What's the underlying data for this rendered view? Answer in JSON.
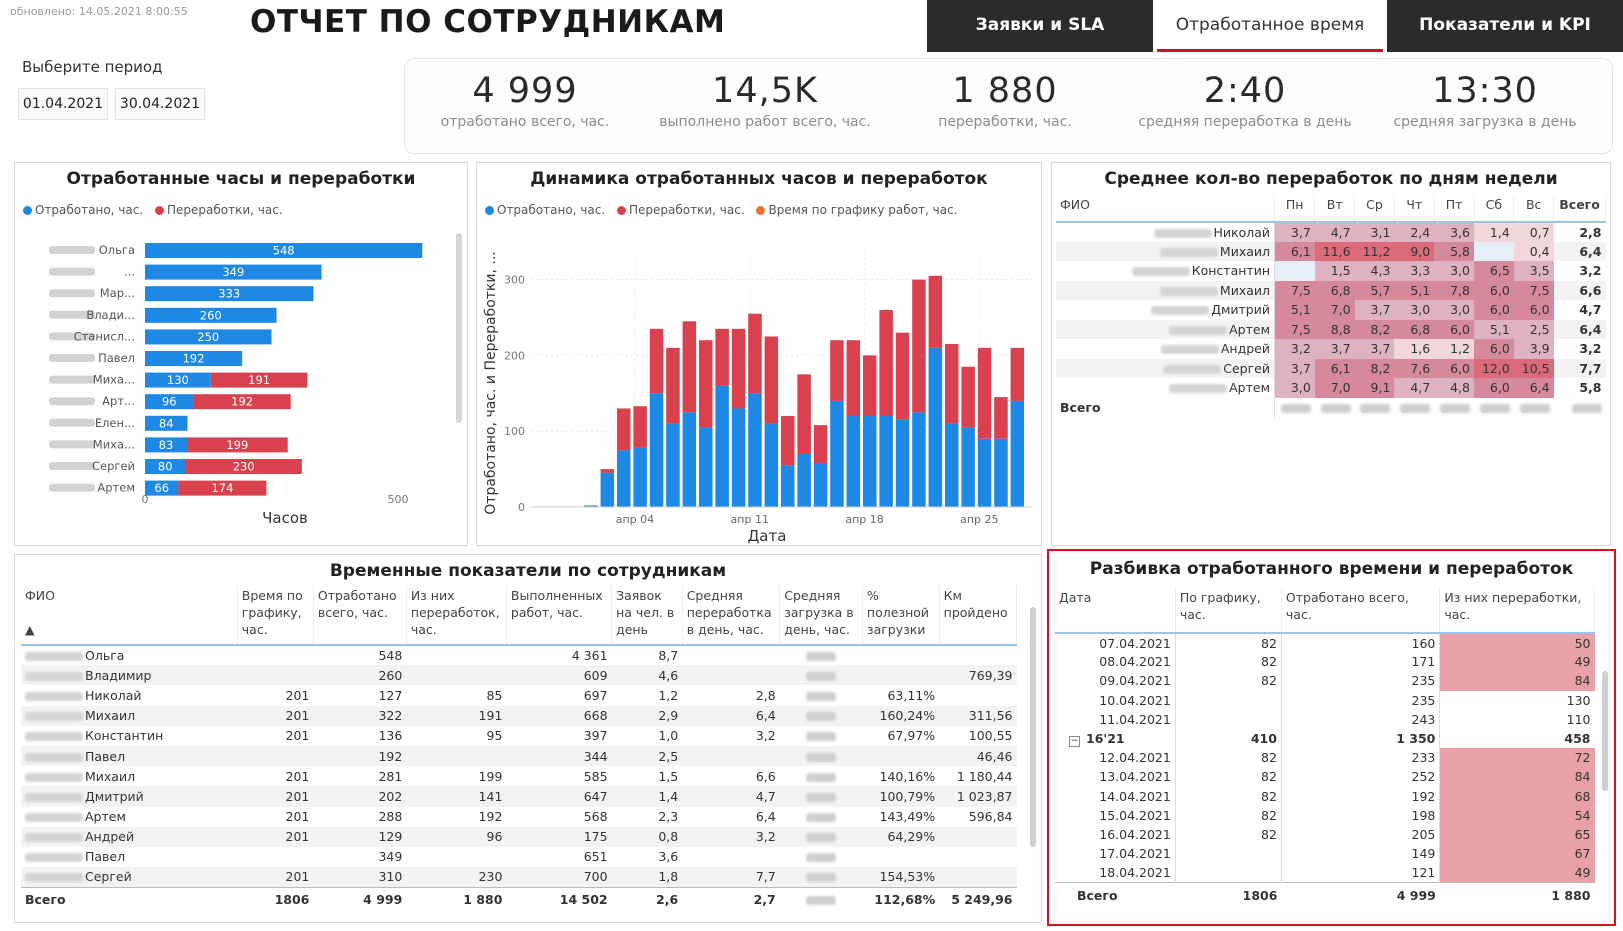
{
  "header": {
    "updated": "обновлено: 14.05.2021 8:00:55",
    "title": "ОТЧЕТ ПО СОТРУДНИКАМ",
    "period_label": "Выберите период",
    "date_from": "01.04.2021",
    "date_to": "30.04.2021",
    "tabs": [
      {
        "label": "Заявки и SLA",
        "state": "dark"
      },
      {
        "label": "Отработанное время",
        "state": "active"
      },
      {
        "label": "Показатели и KPI",
        "state": "dark"
      }
    ]
  },
  "kpis": [
    {
      "value": "4 999",
      "caption": "отработано всего, час."
    },
    {
      "value": "14,5K",
      "caption": "выполнено работ всего, час."
    },
    {
      "value": "1 880",
      "caption": "переработки, час."
    },
    {
      "value": "2:40",
      "caption": "средняя переработка в день"
    },
    {
      "value": "13:30",
      "caption": "средняя загрузка в день"
    }
  ],
  "colors": {
    "blue": "#1e88e5",
    "red": "#d9414f",
    "orange": "#e8743b",
    "accent_red": "#c8182a",
    "dark_tab": "#2b2b2b"
  },
  "panel1": {
    "title": "Отработанные часы и переработки",
    "legend": [
      "Отработано, час.",
      "Переработки, час."
    ],
    "xlabel": "Часов",
    "ticks": [
      "0",
      "500"
    ]
  },
  "panel2": {
    "title": "Динамика отработанных часов и переработок",
    "legend": [
      "Отработано, час.",
      "Переработки, час.",
      "Время по графику работ, час."
    ],
    "ylabel": "Отработано, час. и Переработки, ...",
    "xlabel": "Дата",
    "yticks": [
      "0",
      "100",
      "200",
      "300"
    ],
    "xticks": [
      "апр 04",
      "апр 11",
      "апр 18",
      "апр 25"
    ]
  },
  "chart_data": [
    {
      "type": "bar",
      "orientation": "horizontal",
      "stacked": true,
      "title": "Отработанные часы и переработки",
      "xlabel": "Часов",
      "xlim": [
        0,
        620
      ],
      "categories": [
        "Ольга",
        "...",
        "Мар...",
        "Влади...",
        "Станисл...",
        "Павел",
        "Миха...",
        "Арт...",
        "Елен...",
        "Миха...",
        "Сергей",
        "Артем"
      ],
      "series": [
        {
          "name": "Отработано, час.",
          "color": "#1e88e5",
          "values": [
            548,
            349,
            333,
            260,
            250,
            192,
            130,
            96,
            84,
            83,
            80,
            66
          ]
        },
        {
          "name": "Переработки, час.",
          "color": "#d9414f",
          "values": [
            0,
            0,
            0,
            0,
            0,
            0,
            191,
            192,
            0,
            199,
            230,
            174
          ]
        }
      ]
    },
    {
      "type": "bar",
      "stacked": true,
      "title": "Динамика отработанных часов и переработок",
      "xlabel": "Дата",
      "ylabel": "Отработано, час. и Переработки, ...",
      "ylim": [
        0,
        330
      ],
      "x": [
        "01.04",
        "02.04",
        "03.04",
        "04.04",
        "05.04",
        "06.04",
        "07.04",
        "08.04",
        "09.04",
        "10.04",
        "11.04",
        "12.04",
        "13.04",
        "14.04",
        "15.04",
        "16.04",
        "17.04",
        "18.04",
        "19.04",
        "20.04",
        "21.04",
        "22.04",
        "23.04",
        "24.04",
        "25.04",
        "26.04",
        "27.04",
        "28.04",
        "29.04",
        "30.04"
      ],
      "series": [
        {
          "name": "Отработано, час.",
          "color": "#1e88e5",
          "values": [
            0,
            0,
            0,
            2,
            45,
            75,
            78,
            150,
            110,
            125,
            105,
            160,
            130,
            150,
            110,
            55,
            70,
            58,
            140,
            120,
            120,
            120,
            115,
            125,
            210,
            110,
            105,
            90,
            90,
            140
          ]
        },
        {
          "name": "Переработки, час.",
          "color": "#d9414f",
          "values": [
            0,
            0,
            0,
            0,
            5,
            55,
            55,
            85,
            100,
            120,
            115,
            75,
            105,
            105,
            115,
            65,
            105,
            50,
            80,
            100,
            80,
            140,
            115,
            175,
            95,
            105,
            80,
            120,
            55,
            70
          ]
        }
      ]
    }
  ],
  "panel3": {
    "title": "Среднее кол-во переработок по дням недели",
    "columns": [
      "ФИО",
      "Пн",
      "Вт",
      "Ср",
      "Чт",
      "Пт",
      "Сб",
      "Вс",
      "Всего"
    ],
    "rows": [
      {
        "name": "Николай",
        "v": [
          "3,7",
          "4,7",
          "3,1",
          "2,4",
          "3,6",
          "1,4",
          "0,7"
        ],
        "total": "2,8",
        "heat": [
          1,
          1,
          1,
          1,
          1,
          0,
          0
        ]
      },
      {
        "name": "Михаил",
        "v": [
          "6,1",
          "11,6",
          "11,2",
          "9,0",
          "5,8",
          "",
          "0,4"
        ],
        "total": "6,4",
        "heat": [
          2,
          3,
          3,
          3,
          2,
          -1,
          0
        ]
      },
      {
        "name": "Константин",
        "v": [
          "",
          "1,5",
          "4,3",
          "3,3",
          "3,0",
          "6,5",
          "3,5"
        ],
        "total": "3,2",
        "heat": [
          -1,
          1,
          1,
          1,
          1,
          2,
          1
        ]
      },
      {
        "name": "Михаил",
        "v": [
          "7,5",
          "6,8",
          "5,7",
          "5,1",
          "7,8",
          "6,0",
          "7,5"
        ],
        "total": "6,6",
        "heat": [
          2,
          2,
          2,
          2,
          2,
          2,
          2
        ]
      },
      {
        "name": "Дмитрий",
        "v": [
          "5,1",
          "7,0",
          "3,7",
          "3,0",
          "3,0",
          "6,0",
          "6,0"
        ],
        "total": "4,7",
        "heat": [
          2,
          2,
          1,
          1,
          1,
          2,
          2
        ]
      },
      {
        "name": "Артем",
        "v": [
          "7,5",
          "8,8",
          "8,2",
          "6,8",
          "6,0",
          "5,1",
          "2,5"
        ],
        "total": "6,4",
        "heat": [
          2,
          2,
          2,
          2,
          2,
          1,
          1
        ]
      },
      {
        "name": "Андрей",
        "v": [
          "3,2",
          "3,7",
          "3,7",
          "1,6",
          "1,2",
          "6,0",
          "3,9"
        ],
        "total": "3,2",
        "heat": [
          1,
          1,
          1,
          0,
          0,
          2,
          1
        ]
      },
      {
        "name": "Сергей",
        "v": [
          "3,7",
          "6,1",
          "8,2",
          "7,6",
          "6,0",
          "12,0",
          "10,5"
        ],
        "total": "7,7",
        "heat": [
          1,
          2,
          2,
          2,
          2,
          3,
          3
        ]
      },
      {
        "name": "Артем",
        "v": [
          "3,0",
          "7,0",
          "9,1",
          "4,7",
          "4,8",
          "6,0",
          "6,4"
        ],
        "total": "5,8",
        "heat": [
          1,
          2,
          2,
          1,
          1,
          2,
          2
        ]
      }
    ],
    "total_label": "Всего"
  },
  "panel4": {
    "title": "Временные показатели по сотрудникам",
    "columns": [
      "ФИО",
      "Время по графику, час.",
      "Отработано всего, час.",
      "Из них переработок, час.",
      "Выполненных работ, час.",
      "Заявок на чел. в день",
      "Средняя переработка в день, час.",
      "Средняя загрузка в день, час.",
      "% полезной загрузки",
      "Км пройдено"
    ],
    "rows": [
      [
        "Ольга",
        "",
        "548",
        "",
        "4 361",
        "8,7",
        "",
        "",
        "",
        ""
      ],
      [
        "Владимир",
        "",
        "260",
        "",
        "609",
        "4,6",
        "",
        "",
        "",
        "769,39"
      ],
      [
        "Николай",
        "201",
        "127",
        "85",
        "697",
        "1,2",
        "2,8",
        "",
        "63,11%",
        ""
      ],
      [
        "Михаил",
        "201",
        "322",
        "191",
        "668",
        "2,9",
        "6,4",
        "",
        "160,24%",
        "311,56"
      ],
      [
        "Константин",
        "201",
        "136",
        "95",
        "397",
        "1,0",
        "3,2",
        "",
        "67,97%",
        "100,55"
      ],
      [
        "Павел",
        "",
        "192",
        "",
        "344",
        "2,5",
        "",
        "",
        "",
        "46,46"
      ],
      [
        "Михаил",
        "201",
        "281",
        "199",
        "585",
        "1,5",
        "6,6",
        "",
        "140,16%",
        "1 180,44"
      ],
      [
        "Дмитрий",
        "201",
        "202",
        "141",
        "647",
        "1,4",
        "4,7",
        "",
        "100,79%",
        "1 023,87"
      ],
      [
        "Артем",
        "201",
        "288",
        "192",
        "568",
        "2,3",
        "6,4",
        "",
        "143,49%",
        "596,84"
      ],
      [
        "Андрей",
        "201",
        "129",
        "96",
        "175",
        "0,8",
        "3,2",
        "",
        "64,29%",
        ""
      ],
      [
        "Павел",
        "",
        "349",
        "",
        "651",
        "3,6",
        "",
        "",
        "",
        ""
      ],
      [
        "Сергей",
        "201",
        "310",
        "230",
        "700",
        "1,8",
        "7,7",
        "",
        "154,53%",
        ""
      ]
    ],
    "total": [
      "Всего",
      "1806",
      "4 999",
      "1 880",
      "14 502",
      "2,6",
      "2,7",
      "",
      "112,68%",
      "5 249,96"
    ]
  },
  "panel5": {
    "title": "Разбивка отработанного времени и переработок",
    "columns": [
      "Дата",
      "По графику, час.",
      "Отработано всего, час.",
      "Из них переработки, час."
    ],
    "rows": [
      {
        "d": "07.04.2021",
        "p": "82",
        "w": "160",
        "o": "50",
        "hl": true
      },
      {
        "d": "08.04.2021",
        "p": "82",
        "w": "171",
        "o": "49",
        "hl": true
      },
      {
        "d": "09.04.2021",
        "p": "82",
        "w": "235",
        "o": "84",
        "hl": true
      },
      {
        "d": "10.04.2021",
        "p": "",
        "w": "235",
        "o": "130",
        "hl": false
      },
      {
        "d": "11.04.2021",
        "p": "",
        "w": "243",
        "o": "110",
        "hl": false
      },
      {
        "d": "16'21",
        "p": "410",
        "w": "1 350",
        "o": "458",
        "hl": false,
        "group": true
      },
      {
        "d": "12.04.2021",
        "p": "82",
        "w": "233",
        "o": "72",
        "hl": true
      },
      {
        "d": "13.04.2021",
        "p": "82",
        "w": "252",
        "o": "84",
        "hl": true
      },
      {
        "d": "14.04.2021",
        "p": "82",
        "w": "192",
        "o": "68",
        "hl": true
      },
      {
        "d": "15.04.2021",
        "p": "82",
        "w": "198",
        "o": "54",
        "hl": true
      },
      {
        "d": "16.04.2021",
        "p": "82",
        "w": "205",
        "o": "65",
        "hl": true
      },
      {
        "d": "17.04.2021",
        "p": "",
        "w": "149",
        "o": "67",
        "hl": true
      },
      {
        "d": "18.04.2021",
        "p": "",
        "w": "121",
        "o": "49",
        "hl": true
      }
    ],
    "total": [
      "Всего",
      "1806",
      "4 999",
      "1 880"
    ]
  }
}
